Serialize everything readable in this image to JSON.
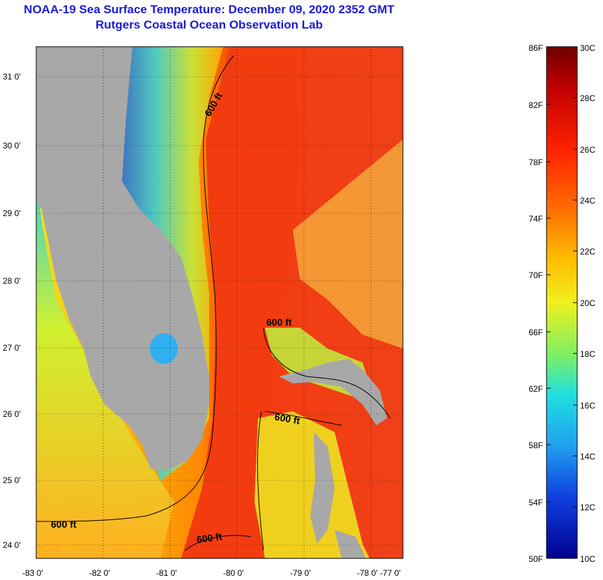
{
  "title": {
    "line1": "NOAA-19 Sea Surface Temperature:  December 09, 2020 2352 GMT",
    "line2": "Rutgers Coastal Ocean Observation Lab"
  },
  "map": {
    "lat_labels": [
      "31 0'",
      "30 0'",
      "29 0'",
      "28 0'",
      "27 0'",
      "26 0'",
      "25 0'",
      "24 0'"
    ],
    "lon_labels": [
      "-83 0'",
      "-82 0'",
      "-81 0'",
      "-80 0'",
      "-79 0'",
      "-78 0'",
      "-77 0'"
    ],
    "contour_labels": [
      "600 ft",
      "600 ft",
      "600 ft",
      "600 ft",
      "600 ft"
    ],
    "colors": {
      "land": "#a8a8a8",
      "gulf_stream": "#f23c10",
      "warm": "#ff6a00",
      "mid": "#f0e020",
      "cool": "#30d0e0",
      "cold": "#1040e0"
    }
  },
  "colorbar": {
    "fahrenheit_labels": [
      "86F",
      "82F",
      "78F",
      "74F",
      "70F",
      "66F",
      "62F",
      "58F",
      "54F",
      "50F"
    ],
    "celsius_labels": [
      "30C",
      "28C",
      "26C",
      "24C",
      "22C",
      "20C",
      "18C",
      "16C",
      "14C",
      "12C",
      "10C"
    ]
  }
}
